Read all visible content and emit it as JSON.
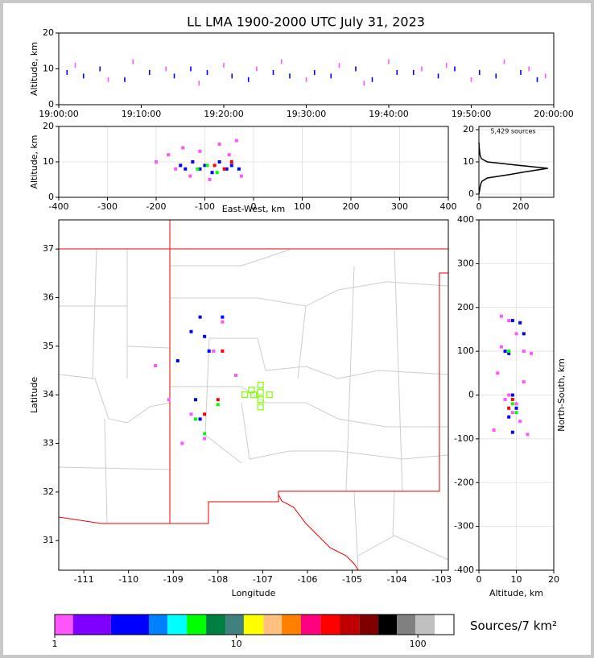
{
  "chart_data": [
    {
      "type": "scatter",
      "title": "LL LMA 1900-2000 UTC July 31, 2023",
      "ylabel": "Altitude, km",
      "xlim": [
        0,
        60
      ],
      "xticks": [
        {
          "value": 0,
          "label": "19:00:00"
        },
        {
          "value": 10,
          "label": "19:10:00"
        },
        {
          "value": 20,
          "label": "19:20:00"
        },
        {
          "value": 30,
          "label": "19:30:00"
        },
        {
          "value": 40,
          "label": "19:40:00"
        },
        {
          "value": 50,
          "label": "19:50:00"
        },
        {
          "value": 60,
          "label": "20:00:00"
        }
      ],
      "ylim": [
        0,
        20
      ],
      "yticks": [
        0,
        10,
        20
      ],
      "grid": false,
      "series": [
        {
          "color": "#0000ff",
          "marker": "tick",
          "x": [
            1,
            3,
            5,
            8,
            11,
            14,
            16,
            18,
            21,
            23,
            26,
            28,
            31,
            33,
            36,
            38,
            41,
            43,
            46,
            48,
            51,
            53,
            56,
            58
          ],
          "y": [
            9,
            8,
            10,
            7,
            9,
            8,
            10,
            9,
            8,
            7,
            9,
            8,
            9,
            8,
            10,
            7,
            9,
            9,
            8,
            10,
            9,
            8,
            9,
            7
          ]
        },
        {
          "color": "#ff55ff",
          "marker": "tick",
          "x": [
            2,
            6,
            9,
            13,
            17,
            20,
            24,
            27,
            30,
            34,
            37,
            40,
            44,
            47,
            50,
            54,
            57,
            59
          ],
          "y": [
            11,
            7,
            12,
            10,
            6,
            11,
            10,
            12,
            7,
            11,
            6,
            12,
            10,
            11,
            7,
            12,
            10,
            8
          ]
        }
      ]
    },
    {
      "type": "scatter",
      "xlabel": "East-West, km",
      "ylabel": "Altitude, km",
      "xlim": [
        -400,
        400
      ],
      "xticks": [
        -400,
        -300,
        -200,
        -100,
        0,
        100,
        200,
        300,
        400
      ],
      "ylim": [
        0,
        20
      ],
      "yticks": [
        0,
        10,
        20
      ],
      "grid": true,
      "series": [
        {
          "color": "#ff55ff",
          "marker": "square",
          "x": [
            -200,
            -175,
            -160,
            -145,
            -130,
            -110,
            -90,
            -70,
            -50,
            -35,
            -25
          ],
          "y": [
            10,
            12,
            8,
            14,
            6,
            13,
            5,
            15,
            12,
            16,
            6
          ]
        },
        {
          "color": "#0000ff",
          "marker": "square",
          "x": [
            -150,
            -140,
            -125,
            -110,
            -100,
            -85,
            -70,
            -55,
            -45,
            -30
          ],
          "y": [
            9,
            8,
            10,
            8,
            9,
            7,
            10,
            8,
            9,
            8
          ]
        },
        {
          "color": "#00ff00",
          "marker": "square",
          "x": [
            -115,
            -95,
            -75
          ],
          "y": [
            8,
            9,
            7
          ]
        },
        {
          "color": "#ff0000",
          "marker": "square",
          "x": [
            -80,
            -60,
            -45
          ],
          "y": [
            9,
            8,
            10
          ]
        }
      ]
    },
    {
      "type": "line",
      "annotation": "5,429 sources",
      "xlim": [
        0,
        358
      ],
      "xticks": [
        0,
        200
      ],
      "ylim": [
        -1,
        21
      ],
      "yticks": [
        0,
        10,
        20
      ],
      "grid": true,
      "series": [
        {
          "color": "#000000",
          "x": [
            0,
            3,
            5,
            8,
            15,
            40,
            140,
            230,
            330,
            180,
            40,
            12,
            6,
            4,
            2,
            1,
            0
          ],
          "y": [
            0,
            1,
            2,
            3,
            4,
            5,
            6,
            7,
            8,
            9,
            10,
            11,
            12,
            13,
            14,
            15,
            16
          ]
        }
      ]
    },
    {
      "type": "scatter",
      "xlabel": "Longitude",
      "ylabel": "Latitude",
      "xlim": [
        -111.56,
        -102.85
      ],
      "xticks": [
        -111,
        -110,
        -109,
        -108,
        -107,
        -106,
        -105,
        -104,
        -103
      ],
      "ylim": [
        30.39,
        37.6
      ],
      "yticks": [
        31,
        32,
        33,
        34,
        35,
        36,
        37
      ],
      "grid": false,
      "series": [
        {
          "color": "#ff55ff",
          "marker": "square",
          "x": [
            -109.4,
            -108.8,
            -108.3,
            -107.9,
            -107.6,
            -108.6,
            -108.1,
            -109.1
          ],
          "y": [
            34.6,
            33.0,
            33.1,
            35.5,
            34.4,
            33.6,
            34.9,
            33.9
          ]
        },
        {
          "color": "#0000ff",
          "marker": "square",
          "x": [
            -108.4,
            -108.3,
            -108.6,
            -108.2,
            -107.9,
            -108.9,
            -108.5,
            -108.4
          ],
          "y": [
            35.6,
            35.2,
            35.3,
            34.9,
            35.6,
            34.7,
            33.9,
            33.5
          ]
        },
        {
          "color": "#00ff00",
          "marker": "square",
          "x": [
            -108.5,
            -108.0,
            -108.3
          ],
          "y": [
            33.5,
            33.8,
            33.2
          ]
        },
        {
          "color": "#ff0000",
          "marker": "square",
          "x": [
            -108.0,
            -107.9,
            -108.3
          ],
          "y": [
            33.9,
            34.9,
            33.6
          ]
        },
        {
          "color": "#7fff00",
          "marker": "open-square",
          "x": [
            -107.05,
            -107.25,
            -107.4,
            -107.05,
            -106.85,
            -107.05,
            -107.05,
            -107.2
          ],
          "y": [
            34.2,
            34.1,
            34.0,
            34.05,
            34.0,
            33.9,
            33.75,
            34.0
          ]
        }
      ]
    },
    {
      "type": "scatter",
      "xlabel": "Altitude, km",
      "ylabel": "North-South, km",
      "xlim": [
        0,
        20
      ],
      "xticks": [
        0,
        10,
        20
      ],
      "ylim": [
        -400,
        400
      ],
      "yticks": [
        -400,
        -300,
        -200,
        -100,
        0,
        100,
        200,
        300,
        400
      ],
      "grid": true,
      "series": [
        {
          "color": "#ff55ff",
          "marker": "square",
          "x": [
            6,
            8,
            10,
            12,
            14,
            5,
            7,
            9,
            11,
            13,
            4,
            8,
            12,
            10,
            6
          ],
          "y": [
            180,
            170,
            140,
            100,
            95,
            50,
            -10,
            -40,
            -60,
            -90,
            -80,
            0,
            30,
            -20,
            110
          ]
        },
        {
          "color": "#0000ff",
          "marker": "square",
          "x": [
            9,
            11,
            12,
            7,
            8,
            9,
            10,
            8,
            9
          ],
          "y": [
            170,
            165,
            140,
            100,
            95,
            0,
            -30,
            -50,
            -85
          ]
        },
        {
          "color": "#00ff00",
          "marker": "square",
          "x": [
            8,
            9,
            10
          ],
          "y": [
            100,
            -20,
            -40
          ]
        },
        {
          "color": "#ff0000",
          "marker": "square",
          "x": [
            8,
            9
          ],
          "y": [
            -30,
            -10
          ]
        }
      ]
    },
    {
      "type": "colorbar",
      "label": "Sources/7 km²",
      "log": true,
      "xlim": [
        1,
        158
      ],
      "xticks": [
        1,
        10,
        100
      ],
      "bins": [
        1,
        1.26,
        2.04,
        3.3,
        4.18,
        5.34,
        6.82,
        8.71,
        11.0,
        14.1,
        17.8,
        22.7,
        29.1,
        37.1,
        47.5,
        60.6,
        76.7,
        97.0,
        124,
        158
      ],
      "colors": [
        "#ff55ff",
        "#8000ff",
        "#0000ff",
        "#0080ff",
        "#00ffff",
        "#00ff00",
        "#008040",
        "#408080",
        "#ffff00",
        "#ffc080",
        "#ff8000",
        "#ff0080",
        "#ff0000",
        "#c00000",
        "#800000",
        "#000000",
        "#808080",
        "#c0c0c0",
        "#ffffff"
      ]
    }
  ]
}
